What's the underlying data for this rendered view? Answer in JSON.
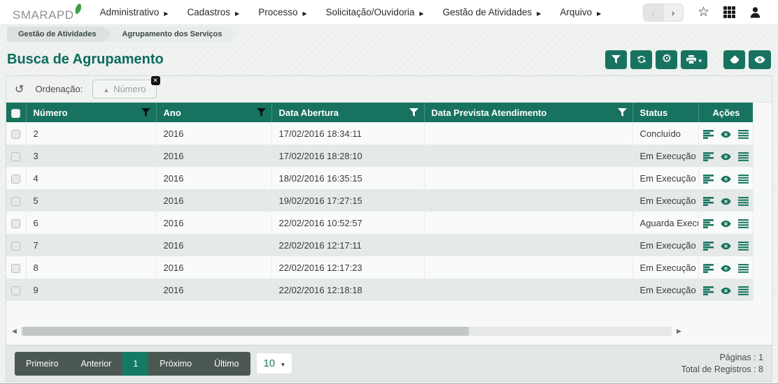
{
  "header": {
    "brand": "SMARAPD",
    "menu": [
      {
        "label": "Administrativo"
      },
      {
        "label": "Cadastros"
      },
      {
        "label": "Processo"
      },
      {
        "label": "Solicitação/Ouvidoria"
      },
      {
        "label": "Gestão de Atividades"
      },
      {
        "label": "Arquivo"
      }
    ],
    "icons": [
      "nav-back-icon",
      "nav-forward-icon",
      "favorite-star-icon",
      "apps-grid-icon",
      "user-icon"
    ]
  },
  "breadcrumbs": [
    {
      "label": "Gestão de Atividades"
    },
    {
      "label": "Agrupamento dos Serviços"
    }
  ],
  "page": {
    "title": "Busca de Agrupamento"
  },
  "toolbar": {
    "icons": [
      "filter-icon",
      "refresh-icon",
      "settings-gear-icon",
      "print-icon",
      "eraser-icon",
      "eye-icon"
    ]
  },
  "sort_bar": {
    "label": "Ordenação:",
    "chip_label": "Número",
    "chip_icons": [
      "sort-ascending-icon",
      "remove-chip-icon"
    ],
    "reset_icon": "undo-rotate-icon"
  },
  "table": {
    "columns": [
      {
        "key": "numero",
        "label": "Número",
        "filter": "dark"
      },
      {
        "key": "ano",
        "label": "Ano",
        "filter": "dark"
      },
      {
        "key": "data_abertura",
        "label": "Data Abertura",
        "filter": "light"
      },
      {
        "key": "data_prevista",
        "label": "Data Prevista Atendimento",
        "filter": "light"
      },
      {
        "key": "status",
        "label": "Status",
        "filter": null
      },
      {
        "key": "acoes",
        "label": "Ações",
        "filter": null
      }
    ],
    "row_actions": [
      {
        "icon": "details"
      },
      {
        "icon": "view"
      },
      {
        "icon": "menu"
      }
    ],
    "rows": [
      {
        "numero": "2",
        "ano": "2016",
        "data_abertura": "17/02/2016 18:34:11",
        "data_prevista": "",
        "status": "Concluído"
      },
      {
        "numero": "3",
        "ano": "2016",
        "data_abertura": "17/02/2016 18:28:10",
        "data_prevista": "",
        "status": "Em Execução"
      },
      {
        "numero": "4",
        "ano": "2016",
        "data_abertura": "18/02/2016 16:35:15",
        "data_prevista": "",
        "status": "Em Execução"
      },
      {
        "numero": "5",
        "ano": "2016",
        "data_abertura": "19/02/2016 17:27:15",
        "data_prevista": "",
        "status": "Em Execução"
      },
      {
        "numero": "6",
        "ano": "2016",
        "data_abertura": "22/02/2016 10:52:57",
        "data_prevista": "",
        "status": "Aguarda Execução"
      },
      {
        "numero": "7",
        "ano": "2016",
        "data_abertura": "22/02/2016 12:17:11",
        "data_prevista": "",
        "status": "Em Execução"
      },
      {
        "numero": "8",
        "ano": "2016",
        "data_abertura": "22/02/2016 12:17:23",
        "data_prevista": "",
        "status": "Em Execução"
      },
      {
        "numero": "9",
        "ano": "2016",
        "data_abertura": "22/02/2016 12:18:18",
        "data_prevista": "",
        "status": "Em Execução"
      }
    ]
  },
  "pagination": {
    "first": "Primeiro",
    "previous": "Anterior",
    "current_page": "1",
    "next": "Próximo",
    "last": "Último",
    "page_size": "10"
  },
  "summary": {
    "pages_label": "Páginas : 1",
    "total_label": "Total de Registros : 8"
  },
  "colors": {
    "accent": "#17735f",
    "title_color": "#0c6b5a",
    "pagination_bg": "#4b5852",
    "page_active": "#147a63"
  }
}
